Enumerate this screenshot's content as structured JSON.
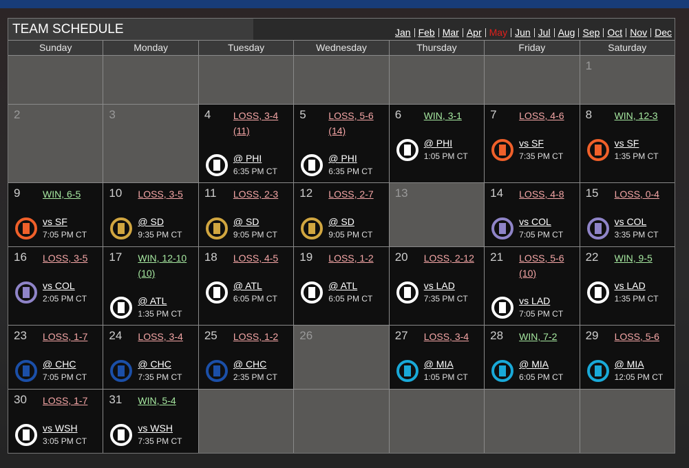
{
  "header": {
    "title": "TEAM SCHEDULE",
    "months": [
      "Jan",
      "Feb",
      "Mar",
      "Apr",
      "May",
      "Jun",
      "Jul",
      "Aug",
      "Sep",
      "Oct",
      "Nov",
      "Dec"
    ],
    "active_month": 4,
    "active_color": "#e0201c"
  },
  "weekdays": [
    "Sunday",
    "Monday",
    "Tuesday",
    "Wednesday",
    "Thursday",
    "Friday",
    "Saturday"
  ],
  "colors": {
    "win": "#a6e8a0",
    "loss": "#f5a6a6"
  },
  "weeks": [
    [
      null,
      null,
      null,
      null,
      null,
      null,
      {
        "day": 1
      }
    ],
    [
      {
        "day": 2
      },
      {
        "day": 3
      },
      {
        "day": 4,
        "result": "LOSS, 3-4 (11)",
        "won": false,
        "opponent": "@ PHI",
        "time": "6:35 PM CT",
        "logo": "#ffffff"
      },
      {
        "day": 5,
        "result": "LOSS, 5-6 (14)",
        "won": false,
        "opponent": "@ PHI",
        "time": "6:35 PM CT",
        "logo": "#ffffff"
      },
      {
        "day": 6,
        "result": "WIN, 3-1",
        "won": true,
        "opponent": "@ PHI",
        "time": "1:05 PM CT",
        "logo": "#ffffff"
      },
      {
        "day": 7,
        "result": "LOSS, 4-6",
        "won": false,
        "opponent": "vs SF",
        "time": "7:35 PM CT",
        "logo": "#f0602a"
      },
      {
        "day": 8,
        "result": "WIN, 12-3",
        "won": true,
        "opponent": "vs SF",
        "time": "1:35 PM CT",
        "logo": "#f0602a"
      }
    ],
    [
      {
        "day": 9,
        "result": "WIN, 6-5",
        "won": true,
        "opponent": "vs SF",
        "time": "7:05 PM CT",
        "logo": "#f0602a"
      },
      {
        "day": 10,
        "result": "LOSS, 3-5",
        "won": false,
        "opponent": "@ SD",
        "time": "9:35 PM CT",
        "logo": "#d1a640"
      },
      {
        "day": 11,
        "result": "LOSS, 2-3",
        "won": false,
        "opponent": "@ SD",
        "time": "9:05 PM CT",
        "logo": "#d1a640"
      },
      {
        "day": 12,
        "result": "LOSS, 2-7",
        "won": false,
        "opponent": "@ SD",
        "time": "9:05 PM CT",
        "logo": "#d1a640"
      },
      {
        "day": 13
      },
      {
        "day": 14,
        "result": "LOSS, 4-8",
        "won": false,
        "opponent": "vs COL",
        "time": "7:05 PM CT",
        "logo": "#8f84c8"
      },
      {
        "day": 15,
        "result": "LOSS, 0-4",
        "won": false,
        "opponent": "vs COL",
        "time": "3:35 PM CT",
        "logo": "#8f84c8"
      }
    ],
    [
      {
        "day": 16,
        "result": "LOSS, 3-5",
        "won": false,
        "opponent": "vs COL",
        "time": "2:05 PM CT",
        "logo": "#8f84c8"
      },
      {
        "day": 17,
        "result": "WIN, 12-10 (10)",
        "won": true,
        "opponent": "@ ATL",
        "time": "1:35 PM CT",
        "logo": "#ffffff"
      },
      {
        "day": 18,
        "result": "LOSS, 4-5",
        "won": false,
        "opponent": "@ ATL",
        "time": "6:05 PM CT",
        "logo": "#ffffff"
      },
      {
        "day": 19,
        "result": "LOSS, 1-2",
        "won": false,
        "opponent": "@ ATL",
        "time": "6:05 PM CT",
        "logo": "#ffffff"
      },
      {
        "day": 20,
        "result": "LOSS, 2-12",
        "won": false,
        "opponent": "vs LAD",
        "time": "7:35 PM CT",
        "logo": "#ffffff"
      },
      {
        "day": 21,
        "result": "LOSS, 5-6 (10)",
        "won": false,
        "opponent": "vs LAD",
        "time": "7:05 PM CT",
        "logo": "#ffffff"
      },
      {
        "day": 22,
        "result": "WIN, 9-5",
        "won": true,
        "opponent": "vs LAD",
        "time": "1:35 PM CT",
        "logo": "#ffffff"
      }
    ],
    [
      {
        "day": 23,
        "result": "LOSS, 1-7",
        "won": false,
        "opponent": "@ CHC",
        "time": "7:05 PM CT",
        "logo": "#1b4fa8"
      },
      {
        "day": 24,
        "result": "LOSS, 3-4",
        "won": false,
        "opponent": "@ CHC",
        "time": "7:35 PM CT",
        "logo": "#1b4fa8"
      },
      {
        "day": 25,
        "result": "LOSS, 1-2",
        "won": false,
        "opponent": "@ CHC",
        "time": "2:35 PM CT",
        "logo": "#1b4fa8"
      },
      {
        "day": 26
      },
      {
        "day": 27,
        "result": "LOSS, 3-4",
        "won": false,
        "opponent": "@ MIA",
        "time": "1:05 PM CT",
        "logo": "#19a9d8"
      },
      {
        "day": 28,
        "result": "WIN, 7-2",
        "won": true,
        "opponent": "@ MIA",
        "time": "6:05 PM CT",
        "logo": "#19a9d8"
      },
      {
        "day": 29,
        "result": "LOSS, 5-6",
        "won": false,
        "opponent": "@ MIA",
        "time": "12:05 PM CT",
        "logo": "#19a9d8"
      }
    ],
    [
      {
        "day": 30,
        "result": "LOSS, 1-7",
        "won": false,
        "opponent": "vs WSH",
        "time": "3:05 PM CT",
        "logo": "#ffffff"
      },
      {
        "day": 31,
        "result": "WIN, 5-4",
        "won": true,
        "opponent": "vs WSH",
        "time": "7:35 PM CT",
        "logo": "#ffffff"
      },
      null,
      null,
      null,
      null,
      null
    ]
  ]
}
